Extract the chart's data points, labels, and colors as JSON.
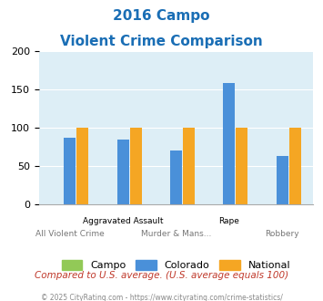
{
  "title_line1": "2016 Campo",
  "title_line2": "Violent Crime Comparison",
  "categories": [
    "All Violent Crime",
    "Aggravated Assault",
    "Murder & Mans...",
    "Rape",
    "Robbery"
  ],
  "campo_values": [
    0,
    0,
    0,
    0,
    0
  ],
  "colorado_values": [
    87,
    85,
    70,
    158,
    63
  ],
  "national_values": [
    100,
    100,
    100,
    100,
    100
  ],
  "campo_color": "#92c957",
  "colorado_color": "#4a90d9",
  "national_color": "#f5a623",
  "title_color": "#1a6eb5",
  "bg_color": "#ddeef6",
  "ylim": [
    0,
    200
  ],
  "yticks": [
    0,
    50,
    100,
    150,
    200
  ],
  "footer_text": "Compared to U.S. average. (U.S. average equals 100)",
  "copyright_text": "© 2025 CityRating.com - https://www.cityrating.com/crime-statistics/",
  "footer_color": "#c0392b",
  "copyright_color": "#888888",
  "legend_labels": [
    "Campo",
    "Colorado",
    "National"
  ],
  "row1_labels": [
    "",
    "Aggravated Assault",
    "",
    "Rape",
    ""
  ],
  "row2_labels": [
    "All Violent Crime",
    "",
    "Murder & Mans...",
    "",
    "Robbery"
  ]
}
